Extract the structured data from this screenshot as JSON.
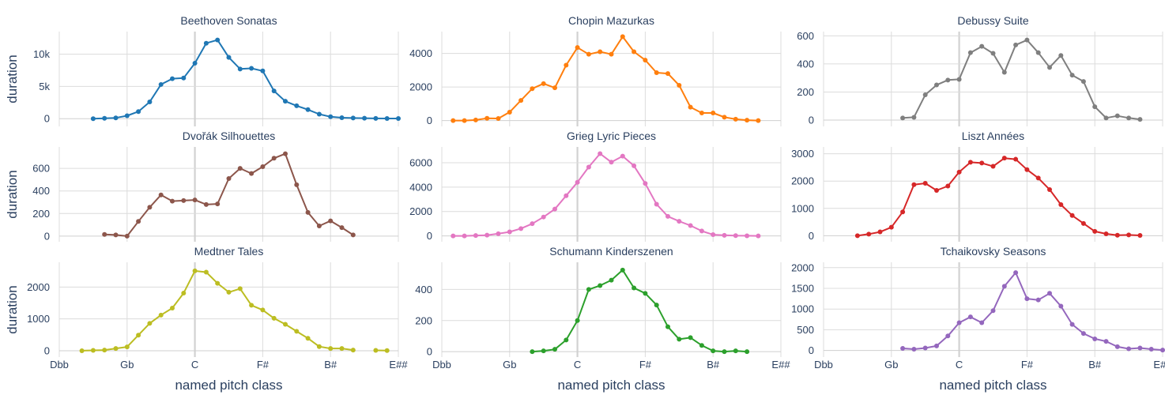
{
  "chart_data": {
    "type": "line",
    "xlabel": "named pitch class",
    "ylabel": "duration",
    "x_tick_labels": [
      "Dbb",
      "Gb",
      "C",
      "F#",
      "B#",
      "E##"
    ],
    "grid": true,
    "panels": [
      {
        "title": "Beethoven Sonatas",
        "color": "#1f77b4",
        "ylim": [
          -1200,
          13500
        ],
        "y_ticks": [
          {
            "v": 0,
            "label": "0"
          },
          {
            "v": 5000,
            "label": "5k"
          },
          {
            "v": 10000,
            "label": "10k"
          }
        ],
        "x_start": 3,
        "values": [
          0,
          50,
          120,
          450,
          1100,
          2600,
          5300,
          6200,
          6300,
          8600,
          11700,
          12200,
          9500,
          7700,
          7800,
          7400,
          4300,
          2700,
          2000,
          1400,
          700,
          300,
          150,
          100,
          70,
          40,
          30,
          20
        ]
      },
      {
        "title": "Chopin Mazurkas",
        "color": "#ff7f0e",
        "ylim": [
          -350,
          5300
        ],
        "y_ticks": [
          {
            "v": 0,
            "label": "0"
          },
          {
            "v": 2000,
            "label": "2000"
          },
          {
            "v": 4000,
            "label": "4000"
          }
        ],
        "x_start": 1,
        "values": [
          0,
          0,
          30,
          130,
          120,
          500,
          1200,
          1900,
          2200,
          1950,
          3300,
          4350,
          3950,
          4100,
          3950,
          5000,
          4100,
          3600,
          2850,
          2800,
          2100,
          800,
          450,
          450,
          200,
          80,
          20,
          0
        ]
      },
      {
        "title": "Debussy Suite",
        "color": "#7f7f7f",
        "ylim": [
          -45,
          630
        ],
        "y_ticks": [
          {
            "v": 0,
            "label": "0"
          },
          {
            "v": 200,
            "label": "200"
          },
          {
            "v": 400,
            "label": "400"
          },
          {
            "v": 600,
            "label": "600"
          }
        ],
        "x_start": 7,
        "values": [
          15,
          20,
          180,
          250,
          285,
          290,
          480,
          525,
          475,
          340,
          535,
          570,
          480,
          375,
          460,
          320,
          275,
          95,
          15,
          30,
          15,
          5
        ]
      },
      {
        "title": "Dvořák Silhouettes",
        "color": "#8c564b",
        "ylim": [
          -50,
          790
        ],
        "y_ticks": [
          {
            "v": 0,
            "label": "0"
          },
          {
            "v": 200,
            "label": "200"
          },
          {
            "v": 400,
            "label": "400"
          },
          {
            "v": 600,
            "label": "600"
          }
        ],
        "x_start": 4,
        "values": [
          15,
          10,
          0,
          130,
          255,
          365,
          310,
          315,
          320,
          280,
          285,
          510,
          600,
          555,
          615,
          690,
          730,
          455,
          210,
          90,
          135,
          75,
          10
        ]
      },
      {
        "title": "Grieg Lyric Pieces",
        "color": "#e377c2",
        "ylim": [
          -480,
          7300
        ],
        "y_ticks": [
          {
            "v": 0,
            "label": "0"
          },
          {
            "v": 2000,
            "label": "2000"
          },
          {
            "v": 4000,
            "label": "4000"
          },
          {
            "v": 6000,
            "label": "6000"
          }
        ],
        "x_start": 1,
        "values": [
          0,
          0,
          30,
          60,
          180,
          330,
          600,
          1000,
          1550,
          2200,
          3300,
          4400,
          5650,
          6750,
          6050,
          6550,
          5750,
          4300,
          2600,
          1600,
          1200,
          850,
          400,
          100,
          50,
          20,
          10,
          0
        ]
      },
      {
        "title": "Liszt Années",
        "color": "#d62728",
        "ylim": [
          -220,
          3250
        ],
        "y_ticks": [
          {
            "v": 0,
            "label": "0"
          },
          {
            "v": 1000,
            "label": "1000"
          },
          {
            "v": 2000,
            "label": "2000"
          },
          {
            "v": 3000,
            "label": "3000"
          }
        ],
        "x_start": 3,
        "values": [
          0,
          60,
          140,
          310,
          870,
          1870,
          1920,
          1660,
          1820,
          2330,
          2690,
          2660,
          2540,
          2840,
          2800,
          2420,
          2110,
          1690,
          1140,
          740,
          450,
          160,
          70,
          20,
          30,
          10
        ]
      },
      {
        "title": "Medtner Tales",
        "color": "#bcbd22",
        "ylim": [
          -200,
          2780
        ],
        "y_ticks": [
          {
            "v": 0,
            "label": "0"
          },
          {
            "v": 1000,
            "label": "1000"
          },
          {
            "v": 2000,
            "label": "2000"
          }
        ],
        "x_start": 2,
        "values": [
          0,
          10,
          20,
          70,
          120,
          490,
          860,
          1120,
          1340,
          1810,
          2510,
          2470,
          2120,
          1840,
          1950,
          1430,
          1280,
          1020,
          830,
          610,
          390,
          130,
          70,
          70,
          20,
          null,
          10,
          5
        ]
      },
      {
        "title": "Schumann Kinderszenen",
        "color": "#2ca02c",
        "ylim": [
          -35,
          575
        ],
        "y_ticks": [
          {
            "v": 0,
            "label": "0"
          },
          {
            "v": 200,
            "label": "200"
          },
          {
            "v": 400,
            "label": "400"
          }
        ],
        "x_start": 8,
        "values": [
          0,
          5,
          15,
          75,
          200,
          400,
          425,
          460,
          525,
          410,
          375,
          300,
          160,
          80,
          90,
          40,
          5,
          0,
          5,
          0
        ]
      },
      {
        "title": "Tchaikovsky Seasons",
        "color": "#9467bd",
        "ylim": [
          -160,
          2130
        ],
        "y_ticks": [
          {
            "v": 0,
            "label": "0"
          },
          {
            "v": 500,
            "label": "500"
          },
          {
            "v": 1000,
            "label": "1000"
          },
          {
            "v": 1500,
            "label": "1500"
          },
          {
            "v": 2000,
            "label": "2000"
          }
        ],
        "x_start": 7,
        "values": [
          50,
          30,
          60,
          110,
          350,
          670,
          810,
          670,
          960,
          1550,
          1880,
          1250,
          1220,
          1380,
          1070,
          630,
          410,
          280,
          220,
          90,
          40,
          60,
          30,
          10
        ]
      }
    ]
  }
}
